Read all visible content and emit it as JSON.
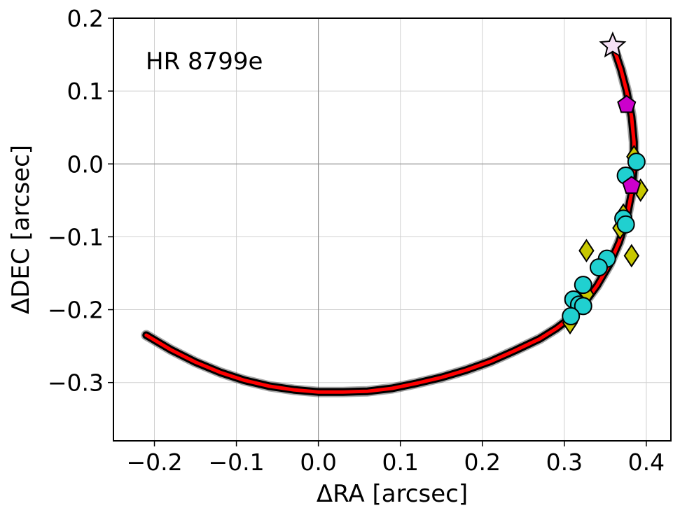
{
  "chart_data": {
    "type": "scatter",
    "annotation": "HR 8799e",
    "xlabel": "ΔRA [arcsec]",
    "ylabel": "ΔDEC [arcsec]",
    "xlim": [
      -0.25,
      0.43
    ],
    "ylim": [
      -0.38,
      0.2
    ],
    "xticks": [
      {
        "value": -0.2,
        "label": "−0.2"
      },
      {
        "value": -0.1,
        "label": "−0.1"
      },
      {
        "value": 0.0,
        "label": "0.0"
      },
      {
        "value": 0.1,
        "label": "0.1"
      },
      {
        "value": 0.2,
        "label": "0.2"
      },
      {
        "value": 0.3,
        "label": "0.3"
      },
      {
        "value": 0.4,
        "label": "0.4"
      }
    ],
    "yticks": [
      {
        "value": -0.3,
        "label": "−0.3"
      },
      {
        "value": -0.2,
        "label": "−0.2"
      },
      {
        "value": -0.1,
        "label": "−0.1"
      },
      {
        "value": 0.0,
        "label": "0.0"
      },
      {
        "value": 0.1,
        "label": "0.1"
      },
      {
        "value": 0.2,
        "label": "0.2"
      }
    ],
    "grid": true,
    "zero_lines": true,
    "orbit_model": {
      "color": "#ff0000",
      "outline_color": "#000000",
      "points": [
        [
          -0.21,
          -0.235
        ],
        [
          -0.18,
          -0.255
        ],
        [
          -0.15,
          -0.272
        ],
        [
          -0.12,
          -0.286
        ],
        [
          -0.09,
          -0.297
        ],
        [
          -0.06,
          -0.305
        ],
        [
          -0.03,
          -0.31
        ],
        [
          0.0,
          -0.313
        ],
        [
          0.03,
          -0.313
        ],
        [
          0.06,
          -0.312
        ],
        [
          0.09,
          -0.308
        ],
        [
          0.12,
          -0.301
        ],
        [
          0.15,
          -0.293
        ],
        [
          0.18,
          -0.283
        ],
        [
          0.21,
          -0.271
        ],
        [
          0.24,
          -0.256
        ],
        [
          0.27,
          -0.24
        ],
        [
          0.29,
          -0.226
        ],
        [
          0.31,
          -0.209
        ],
        [
          0.325,
          -0.19
        ],
        [
          0.34,
          -0.167
        ],
        [
          0.355,
          -0.138
        ],
        [
          0.367,
          -0.107
        ],
        [
          0.376,
          -0.075
        ],
        [
          0.382,
          -0.04
        ],
        [
          0.385,
          -0.005
        ],
        [
          0.385,
          0.03
        ],
        [
          0.382,
          0.065
        ],
        [
          0.376,
          0.1
        ],
        [
          0.369,
          0.13
        ],
        [
          0.36,
          0.16
        ]
      ]
    },
    "series": [
      {
        "marker": "diamond",
        "color": "#c8c800",
        "points": [
          [
            0.385,
            0.01
          ],
          [
            0.393,
            -0.036
          ],
          [
            0.382,
            -0.126
          ],
          [
            0.327,
            -0.119
          ],
          [
            0.368,
            -0.088
          ],
          [
            0.372,
            -0.07
          ],
          [
            0.327,
            -0.179
          ],
          [
            0.318,
            -0.19
          ],
          [
            0.307,
            -0.218
          ]
        ]
      },
      {
        "marker": "circle",
        "color": "#20d0d0",
        "points": [
          [
            0.388,
            0.003
          ],
          [
            0.375,
            -0.016
          ],
          [
            0.372,
            -0.075
          ],
          [
            0.375,
            -0.083
          ],
          [
            0.352,
            -0.13
          ],
          [
            0.342,
            -0.142
          ],
          [
            0.323,
            -0.166
          ],
          [
            0.311,
            -0.186
          ],
          [
            0.318,
            -0.193
          ],
          [
            0.323,
            -0.195
          ],
          [
            0.308,
            -0.209
          ]
        ]
      },
      {
        "marker": "pentagon",
        "color": "#cc00cc",
        "points": [
          [
            0.376,
            0.081
          ],
          [
            0.382,
            -0.03
          ]
        ]
      },
      {
        "marker": "star",
        "color": "#f5e0f5",
        "points": [
          [
            0.359,
            0.162
          ]
        ]
      }
    ]
  }
}
